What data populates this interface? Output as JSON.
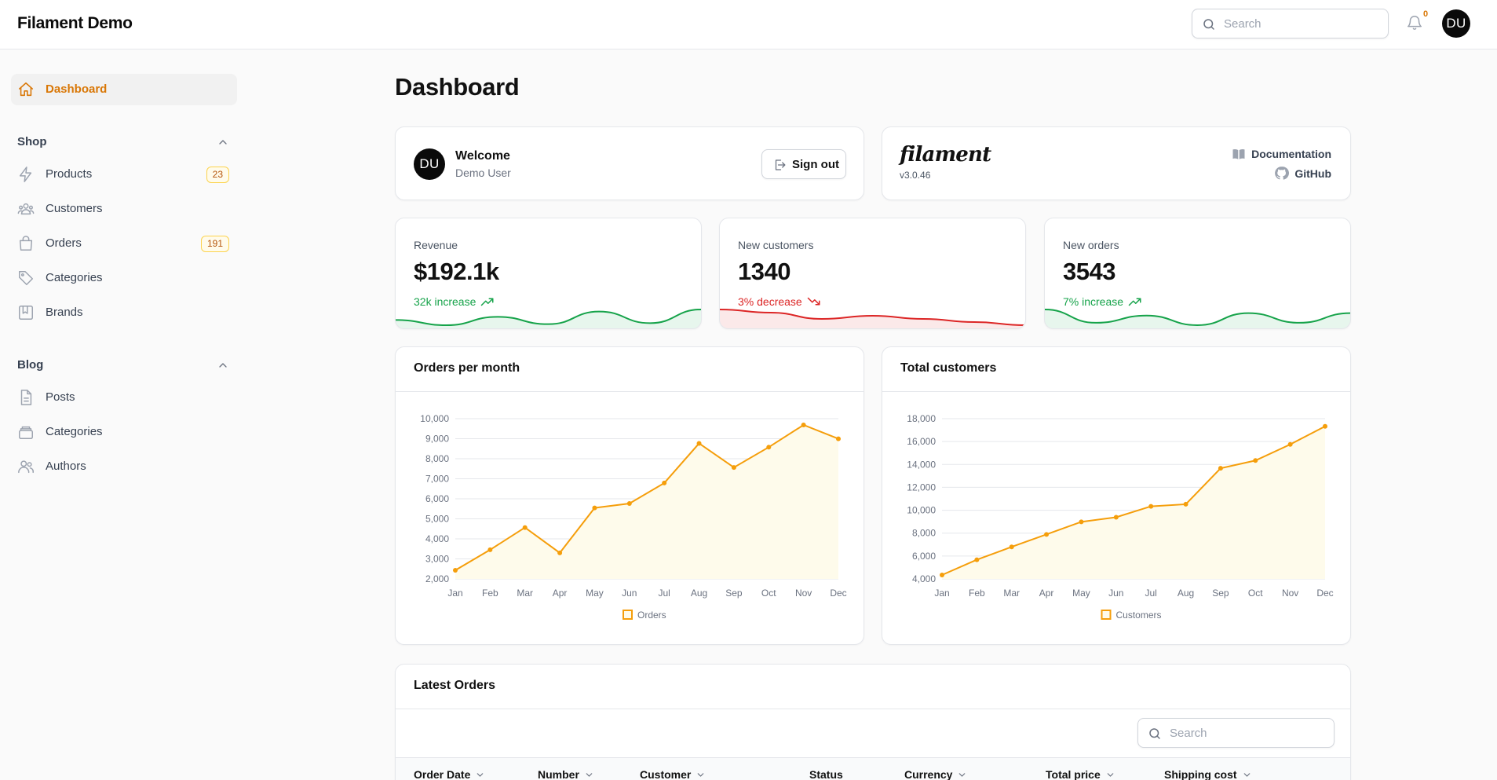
{
  "app": {
    "title": "Filament Demo"
  },
  "topbar": {
    "search_placeholder": "Search",
    "notification_count": "0",
    "avatar_initials": "DU"
  },
  "sidebar": {
    "dashboard": {
      "label": "Dashboard",
      "icon": "home-icon"
    },
    "groups": [
      {
        "label": "Shop",
        "items": [
          {
            "label": "Products",
            "icon": "bolt-icon",
            "badge": "23"
          },
          {
            "label": "Customers",
            "icon": "user-group-icon",
            "badge": ""
          },
          {
            "label": "Orders",
            "icon": "shopping-bag-icon",
            "badge": "191"
          },
          {
            "label": "Categories",
            "icon": "tag-icon",
            "badge": ""
          },
          {
            "label": "Brands",
            "icon": "bookmark-square-icon",
            "badge": ""
          }
        ]
      },
      {
        "label": "Blog",
        "items": [
          {
            "label": "Posts",
            "icon": "document-text-icon"
          },
          {
            "label": "Categories",
            "icon": "rectangle-stack-icon"
          },
          {
            "label": "Authors",
            "icon": "users-icon"
          }
        ]
      }
    ]
  },
  "page": {
    "title": "Dashboard"
  },
  "account_widget": {
    "avatar_initials": "DU",
    "title": "Welcome",
    "user_name": "Demo User",
    "signout_label": "Sign out"
  },
  "filament_widget": {
    "logo": "filament",
    "version": "v3.0.46",
    "documentation_label": "Documentation",
    "github_label": "GitHub"
  },
  "stats": [
    {
      "label": "Revenue",
      "value": "$192.1k",
      "description": "32k increase",
      "trend": "up",
      "color": "#16a34a",
      "sparkline": [
        7,
        2,
        10,
        3,
        15,
        4,
        17
      ]
    },
    {
      "label": "New customers",
      "value": "1340",
      "description": "3% decrease",
      "trend": "down",
      "color": "#dc2626",
      "sparkline": [
        17,
        16,
        14,
        15,
        14,
        13,
        12
      ]
    },
    {
      "label": "New orders",
      "value": "3543",
      "description": "7% increase",
      "trend": "up",
      "color": "#16a34a",
      "sparkline": [
        15,
        4,
        10,
        2,
        12,
        4,
        12
      ]
    }
  ],
  "chart_data": [
    {
      "type": "line",
      "title": "Orders per month",
      "categories": [
        "Jan",
        "Feb",
        "Mar",
        "Apr",
        "May",
        "Jun",
        "Jul",
        "Aug",
        "Sep",
        "Oct",
        "Nov",
        "Dec"
      ],
      "series": [
        {
          "name": "Orders",
          "values": [
            2433,
            3454,
            4566,
            3300,
            5545,
            5765,
            6787,
            8767,
            7565,
            8576,
            9686,
            8996
          ]
        }
      ],
      "ylim": [
        2000,
        10000
      ],
      "yticks": [
        2000,
        3000,
        4000,
        5000,
        6000,
        7000,
        8000,
        9000,
        10000
      ],
      "ytick_labels": [
        "2,000",
        "3,000",
        "4,000",
        "5,000",
        "6,000",
        "7,000",
        "8,000",
        "9,000",
        "10,000"
      ],
      "color": "#f59e0b",
      "fill": "#fefbeb",
      "grid": true,
      "legend": "bottom"
    },
    {
      "type": "line",
      "title": "Total customers",
      "categories": [
        "Jan",
        "Feb",
        "Mar",
        "Apr",
        "May",
        "Jun",
        "Jul",
        "Aug",
        "Sep",
        "Oct",
        "Nov",
        "Dec"
      ],
      "series": [
        {
          "name": "Customers",
          "values": [
            4344,
            5676,
            6798,
            7890,
            8987,
            9388,
            10343,
            10524,
            13664,
            14345,
            15753,
            17332
          ]
        }
      ],
      "ylim": [
        4000,
        18000
      ],
      "yticks": [
        4000,
        6000,
        8000,
        10000,
        12000,
        14000,
        16000,
        18000
      ],
      "ytick_labels": [
        "4,000",
        "6,000",
        "8,000",
        "10,000",
        "12,000",
        "14,000",
        "16,000",
        "18,000"
      ],
      "color": "#f59e0b",
      "fill": "#fefbeb",
      "grid": true,
      "legend": "bottom"
    }
  ],
  "latest_orders": {
    "title": "Latest Orders",
    "search_placeholder": "Search",
    "columns": [
      {
        "label": "Order Date",
        "sortable": true
      },
      {
        "label": "Number",
        "sortable": true
      },
      {
        "label": "Customer",
        "sortable": true
      },
      {
        "label": "Status",
        "sortable": false
      },
      {
        "label": "Currency",
        "sortable": true
      },
      {
        "label": "Total price",
        "sortable": true
      },
      {
        "label": "Shipping cost",
        "sortable": true
      }
    ]
  }
}
